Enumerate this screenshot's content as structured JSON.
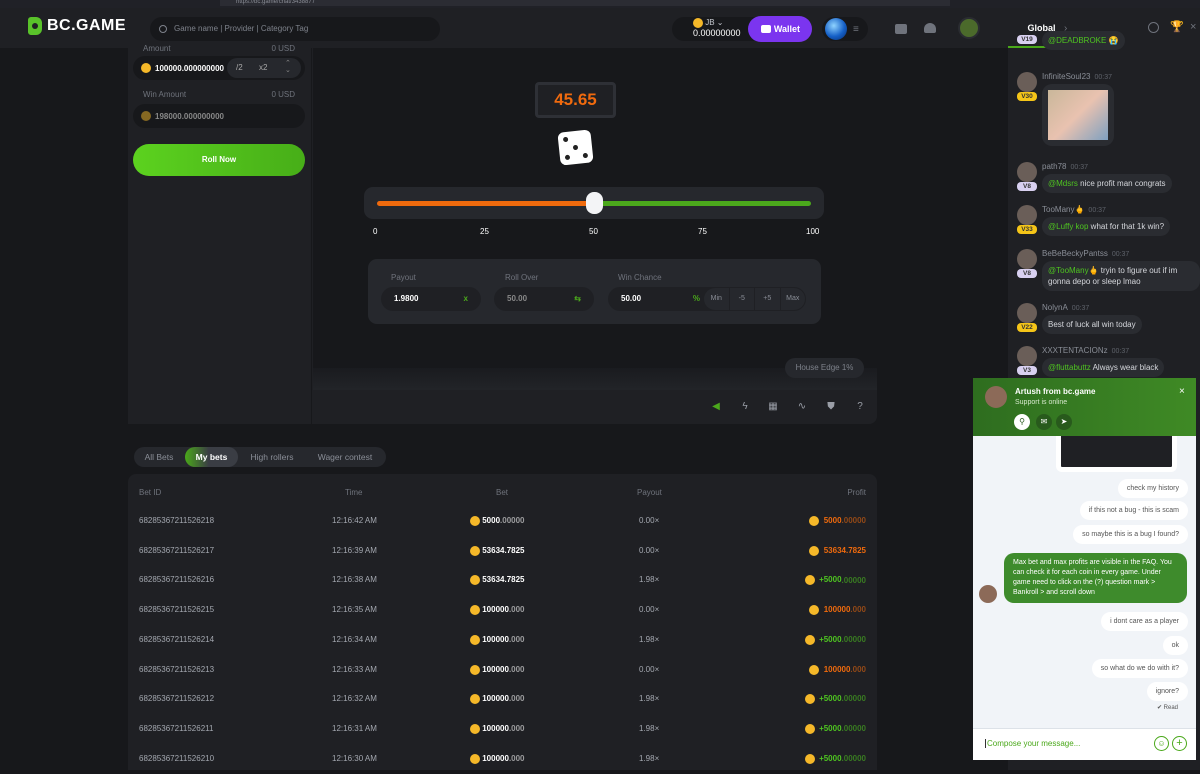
{
  "browser": {
    "url": "https://bc.game/chat/3438877"
  },
  "header": {
    "logo": "BC.GAME",
    "search_placeholder": "Game name | Provider | Category Tag",
    "currency": "JB",
    "balance": "0.00000000",
    "wallet_label": "Wallet",
    "coin_symbol": "JB"
  },
  "controls": {
    "amount_label": "Amount",
    "amount_usd": "0 USD",
    "amount_value": "100000.000000000",
    "half": "/2",
    "double": "x2",
    "win_label": "Win Amount",
    "win_usd": "0 USD",
    "win_value": "198000.000000000",
    "roll_button": "Roll Now"
  },
  "game": {
    "result": "45.65",
    "slider_value": 50,
    "ticks": [
      "0",
      "25",
      "50",
      "75",
      "100"
    ],
    "payout_label": "Payout",
    "payout": "1.9800",
    "payout_suffix": "x",
    "rollover_label": "Roll Over",
    "rollover": "50.00",
    "winchance_label": "Win Chance",
    "winchance": "50.00",
    "winchance_suffix": "%",
    "adjust": [
      "Min",
      "-5",
      "+5",
      "Max"
    ],
    "house_edge": "House Edge 1%",
    "colors": {
      "lose": "#ef6a0d",
      "win": "#4ec420"
    }
  },
  "tabs": [
    "All Bets",
    "My bets",
    "High rollers",
    "Wager contest"
  ],
  "table": {
    "headers": [
      "Bet ID",
      "Time",
      "Bet",
      "Payout",
      "Profit"
    ],
    "rows": [
      {
        "id": "68285367211526218",
        "time": "12:16:42 AM",
        "bet": "5000",
        "bet_dec": ".00000",
        "payout": "0.00×",
        "profit": "5000",
        "profit_dec": ".00000",
        "result": "loss"
      },
      {
        "id": "68285367211526217",
        "time": "12:16:39 AM",
        "bet": "53634.7825",
        "bet_dec": "",
        "payout": "0.00×",
        "profit": "53634.7825",
        "profit_dec": "",
        "result": "loss"
      },
      {
        "id": "68285367211526216",
        "time": "12:16:38 AM",
        "bet": "53634.7825",
        "bet_dec": "",
        "payout": "1.98×",
        "profit": "+5000",
        "profit_dec": ".00000",
        "result": "win"
      },
      {
        "id": "68285367211526215",
        "time": "12:16:35 AM",
        "bet": "100000",
        "bet_dec": ".000",
        "payout": "0.00×",
        "profit": "100000",
        "profit_dec": ".000",
        "result": "loss"
      },
      {
        "id": "68285367211526214",
        "time": "12:16:34 AM",
        "bet": "100000",
        "bet_dec": ".000",
        "payout": "1.98×",
        "profit": "+5000",
        "profit_dec": ".00000",
        "result": "win"
      },
      {
        "id": "68285367211526213",
        "time": "12:16:33 AM",
        "bet": "100000",
        "bet_dec": ".000",
        "payout": "0.00×",
        "profit": "100000",
        "profit_dec": ".000",
        "result": "loss"
      },
      {
        "id": "68285367211526212",
        "time": "12:16:32 AM",
        "bet": "100000",
        "bet_dec": ".000",
        "payout": "1.98×",
        "profit": "+5000",
        "profit_dec": ".00000",
        "result": "win"
      },
      {
        "id": "68285367211526211",
        "time": "12:16:31 AM",
        "bet": "100000",
        "bet_dec": ".000",
        "payout": "1.98×",
        "profit": "+5000",
        "profit_dec": ".00000",
        "result": "win"
      },
      {
        "id": "68285367211526210",
        "time": "12:16:30 AM",
        "bet": "100000",
        "bet_dec": ".000",
        "payout": "1.98×",
        "profit": "+5000",
        "profit_dec": ".00000",
        "result": "win"
      }
    ]
  },
  "chat": {
    "tab": "Global",
    "messages": [
      {
        "name": "",
        "time": "",
        "vip": "V19",
        "mention": "@DEADBROKE",
        "text": " 😭"
      },
      {
        "name": "InfiniteSoul23",
        "time": "00:37",
        "vip": "V30",
        "mention": "",
        "text": ""
      },
      {
        "name": "path78",
        "time": "00:37",
        "vip": "V8",
        "mention": "@Mdsrs",
        "text": " nice profit man congrats"
      },
      {
        "name": "TooMany🖕",
        "time": "00:37",
        "vip": "V33",
        "mention": "@Luffy kop",
        "text": " what for that 1k win?"
      },
      {
        "name": "BeBeBeckyPantss",
        "time": "00:37",
        "vip": "V8",
        "mention": "@TooMany🖕",
        "text": " tryin to figure out if im gonna depo or sleep lmao"
      },
      {
        "name": "NolynA",
        "time": "00:37",
        "vip": "V22",
        "mention": "",
        "text": "Best of luck all win today"
      },
      {
        "name": "XXXTENTACIONz",
        "time": "00:37",
        "vip": "V3",
        "mention": "@fluttabuttz",
        "text": " Always wear black"
      }
    ]
  },
  "support": {
    "agent": "Artush from bc.game",
    "status": "Support is online",
    "user_messages_top": [
      "check my history",
      "if this not a bug - this is scam",
      "so maybe this is a bug I found?"
    ],
    "agent_message": "Max bet and max profits are visible in the FAQ. You can check it for each coin in every game. Under game need to click on the (?) question mark > Bankroll > and scroll down",
    "user_messages_bottom": [
      "i dont care as a player",
      "ok",
      "so what do we do with it?",
      "ignore?"
    ],
    "read": "✔ Read",
    "compose_placeholder": "Compose your message..."
  }
}
